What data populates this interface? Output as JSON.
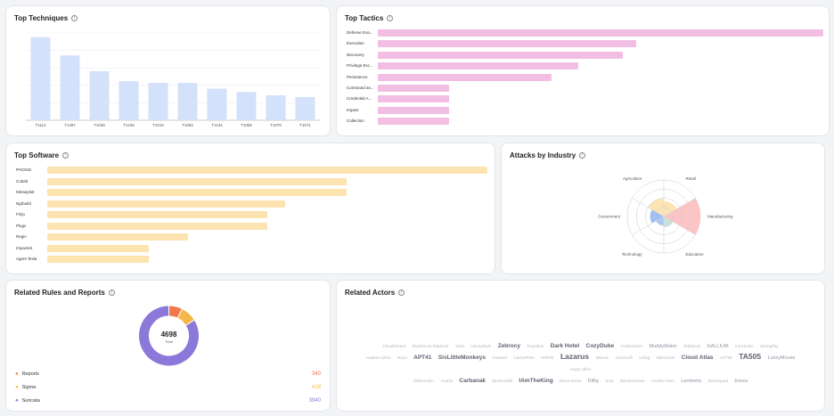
{
  "top_techniques": {
    "title": "Top Techniques",
    "chart_data": {
      "type": "bar",
      "categories": [
        "T1112",
        "T1497",
        "T1036",
        "T1106",
        "T1010",
        "T1082",
        "T1134",
        "T1055",
        "T1070",
        "T1071"
      ],
      "values": [
        100,
        78,
        59,
        47,
        45,
        45,
        38,
        34,
        30,
        28
      ],
      "ylim": [
        0,
        105
      ],
      "grid": true,
      "color": "#d3e1fb"
    }
  },
  "top_tactics": {
    "title": "Top Tactics",
    "chart_data": {
      "type": "bar",
      "orientation": "horizontal",
      "categories": [
        "Defense Eva...",
        "Execution",
        "Discovery",
        "Privilege Esc...",
        "Persistence",
        "Command an...",
        "Credential A...",
        "Impact",
        "Collection"
      ],
      "values": [
        100,
        58,
        55,
        45,
        39,
        16,
        16,
        16,
        16
      ],
      "xlim": [
        0,
        100
      ],
      "color": "#f2bee4"
    }
  },
  "top_software": {
    "title": "Top Software",
    "chart_data": {
      "type": "bar",
      "orientation": "horizontal",
      "categories": [
        "PHOSIS",
        "Cobalt",
        "Metasploit",
        "Ngrbuild",
        "Fritjo",
        "Plugx",
        "Regin",
        "Impacket",
        "Agent Tesla"
      ],
      "values": [
        100,
        68,
        68,
        54,
        50,
        50,
        32,
        23,
        23
      ],
      "xlim": [
        0,
        100
      ],
      "color": "#fde3b0"
    }
  },
  "attacks_by_industry": {
    "title": "Attacks by Industry",
    "chart_data": {
      "type": "polar-area",
      "categories": [
        "Retail",
        "Manufacturing",
        "Education",
        "Technology",
        "Government",
        "Agriculture"
      ],
      "values": [
        0.42,
        1.0,
        0.3,
        0.25,
        0.38,
        0.5
      ],
      "colors": [
        "#fde3b0",
        "#fcc4c4",
        "#c8e4d8",
        "#a9c7f5",
        "#9ebdf2",
        "#fde3b0"
      ],
      "rmax": 1.0
    }
  },
  "related_rules": {
    "title": "Related Rules and Reports",
    "total": "4698",
    "total_label": "Total",
    "chart_data": {
      "type": "pie",
      "categories": [
        "Reports",
        "Sigma",
        "Suricata"
      ],
      "values": [
        340,
        418,
        3940
      ],
      "colors": [
        "#f2784b",
        "#f4b84a",
        "#8b78d9"
      ]
    },
    "legend": [
      {
        "name": "Reports",
        "value": "340",
        "color": "#f2784b"
      },
      {
        "name": "Sigma",
        "value": "418",
        "color": "#f4b84a"
      },
      {
        "name": "Suricata",
        "value": "3940",
        "color": "#8b78d9"
      }
    ]
  },
  "related_actors": {
    "title": "Related Actors",
    "lines": [
      [
        [
          "CloudWizard",
          1
        ],
        [
          "Mysterious Elephant",
          1
        ],
        [
          "Turla",
          1
        ],
        [
          "HoneyMyte",
          1
        ],
        [
          "Zebrocy",
          3
        ],
        [
          "Poseidon",
          1
        ],
        [
          "Dark Hotel",
          3
        ],
        [
          "CozyDuke",
          3
        ],
        [
          "GoblinDown",
          1
        ],
        [
          "MuddyWater",
          2
        ],
        [
          "TeddyCat",
          1
        ],
        [
          "GALLIUM",
          2
        ],
        [
          "IronHusky",
          1
        ],
        [
          "StrongPity",
          1
        ]
      ],
      [
        [
          "Awaken Likho",
          1
        ],
        [
          "Dropi",
          1
        ],
        [
          "APT41",
          3
        ],
        [
          "SixLittleMonkeys",
          3
        ],
        [
          "Andariel",
          1
        ],
        [
          "CactusPete",
          1
        ],
        [
          "WIRTE",
          1
        ],
        [
          "Lazarus",
          4
        ],
        [
          "Silence",
          1
        ],
        [
          "ScarCruft",
          1
        ],
        [
          "Icefog",
          1
        ],
        [
          "BlackJack",
          1
        ],
        [
          "Cloud Atlas",
          3
        ],
        [
          "APT35",
          1
        ],
        [
          "TA505",
          4
        ],
        [
          "LuckyMouse",
          2
        ],
        [
          "Angry Likho",
          1
        ]
      ],
      [
        [
          "OldGremlin",
          1
        ],
        [
          "Anubis",
          1
        ],
        [
          "Carbanak",
          3
        ],
        [
          "MosesStaff",
          1
        ],
        [
          "IAmTheKing",
          3
        ],
        [
          "Black Dress",
          1
        ],
        [
          "Dilfig",
          2
        ],
        [
          "Sunt",
          1
        ],
        [
          "BlackShadow",
          1
        ],
        [
          "Arcane Farm",
          1
        ],
        [
          "Lamberts",
          2
        ],
        [
          "DustSquad",
          1
        ],
        [
          "Korea",
          2
        ]
      ]
    ]
  }
}
